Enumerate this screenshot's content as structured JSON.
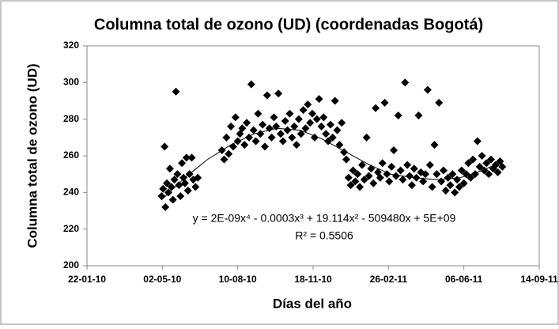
{
  "chart_data": {
    "type": "scatter",
    "title": "Columna total de ozono (UD) (coordenadas Bogotá)",
    "x_label": "Días del año",
    "y_label": "Columna total de ozono (UD)",
    "color": "#000000",
    "x": [
      "2010-05-01",
      "2010-05-03",
      "2010-05-05",
      "2010-05-06",
      "2010-05-08",
      "2010-05-10",
      "2010-05-12",
      "2010-05-14",
      "2010-05-16",
      "2010-05-18",
      "2010-05-20",
      "2010-05-22",
      "2010-05-24",
      "2010-05-26",
      "2010-05-28",
      "2010-05-30",
      "2010-06-01",
      "2010-06-03",
      "2010-06-05",
      "2010-06-07",
      "2010-06-10",
      "2010-06-12",
      "2010-06-15",
      "2010-06-18",
      "2010-07-20",
      "2010-07-23",
      "2010-07-26",
      "2010-07-29",
      "2010-08-01",
      "2010-08-04",
      "2010-08-07",
      "2010-08-10",
      "2010-08-13",
      "2010-08-16",
      "2010-08-19",
      "2010-08-22",
      "2010-08-25",
      "2010-08-28",
      "2010-08-31",
      "2010-09-03",
      "2010-09-06",
      "2010-09-09",
      "2010-09-12",
      "2010-09-15",
      "2010-09-18",
      "2010-09-21",
      "2010-09-24",
      "2010-09-27",
      "2010-09-30",
      "2010-10-03",
      "2010-10-06",
      "2010-10-09",
      "2010-10-12",
      "2010-10-15",
      "2010-10-18",
      "2010-10-21",
      "2010-10-24",
      "2010-10-27",
      "2010-10-30",
      "2010-11-02",
      "2010-11-05",
      "2010-11-08",
      "2010-11-11",
      "2010-11-14",
      "2010-11-17",
      "2010-11-20",
      "2010-11-23",
      "2010-11-26",
      "2010-11-29",
      "2010-12-02",
      "2010-12-05",
      "2010-12-08",
      "2010-12-11",
      "2010-12-14",
      "2010-12-17",
      "2010-12-20",
      "2010-12-23",
      "2010-12-26",
      "2010-12-29",
      "2011-01-01",
      "2011-01-04",
      "2011-01-07",
      "2011-01-10",
      "2011-01-13",
      "2011-01-16",
      "2011-01-19",
      "2011-01-22",
      "2011-01-25",
      "2011-01-28",
      "2011-01-31",
      "2011-02-03",
      "2011-02-06",
      "2011-02-09",
      "2011-02-12",
      "2011-02-15",
      "2011-02-18",
      "2011-02-21",
      "2011-02-24",
      "2011-02-27",
      "2011-03-02",
      "2011-03-05",
      "2011-03-08",
      "2011-03-11",
      "2011-03-14",
      "2011-03-17",
      "2011-03-20",
      "2011-03-23",
      "2011-03-26",
      "2011-03-29",
      "2011-04-01",
      "2011-04-04",
      "2011-04-07",
      "2011-04-10",
      "2011-04-13",
      "2011-04-16",
      "2011-04-19",
      "2011-04-22",
      "2011-04-25",
      "2011-04-28",
      "2011-05-01",
      "2011-05-04",
      "2011-05-07",
      "2011-05-10",
      "2011-05-13",
      "2011-05-16",
      "2011-05-19",
      "2011-05-22",
      "2011-05-25",
      "2011-05-28",
      "2011-05-31",
      "2011-06-03",
      "2011-06-06",
      "2011-06-09",
      "2011-06-12",
      "2011-06-15",
      "2011-06-18",
      "2011-06-21",
      "2011-06-24",
      "2011-06-27",
      "2011-06-30",
      "2011-07-03",
      "2011-07-06",
      "2011-07-09",
      "2011-07-12",
      "2011-07-15",
      "2011-07-18",
      "2011-07-21",
      "2011-07-24",
      "2011-07-27"
    ],
    "values": [
      238,
      242,
      265,
      232,
      245,
      240,
      253,
      243,
      236,
      247,
      295,
      250,
      244,
      238,
      256,
      248,
      245,
      259,
      241,
      250,
      259,
      247,
      243,
      248,
      263,
      258,
      270,
      261,
      276,
      265,
      281,
      268,
      272,
      275,
      266,
      278,
      270,
      299,
      274,
      268,
      283,
      272,
      277,
      265,
      293,
      275,
      270,
      281,
      276,
      294,
      272,
      268,
      279,
      274,
      283,
      270,
      276,
      266,
      280,
      272,
      285,
      275,
      288,
      278,
      283,
      270,
      280,
      291,
      276,
      281,
      272,
      268,
      277,
      270,
      290,
      274,
      266,
      278,
      262,
      258,
      248,
      244,
      252,
      246,
      250,
      243,
      255,
      247,
      270,
      249,
      253,
      245,
      286,
      251,
      248,
      256,
      289,
      250,
      246,
      254,
      263,
      249,
      282,
      252,
      247,
      300,
      255,
      249,
      244,
      253,
      248,
      282,
      251,
      246,
      250,
      296,
      255,
      243,
      266,
      250,
      289,
      246,
      252,
      241,
      248,
      244,
      250,
      240,
      247,
      243,
      252,
      245,
      250,
      256,
      248,
      258,
      250,
      268,
      254,
      260,
      252,
      256,
      250,
      258,
      253,
      255,
      251,
      257,
      254
    ],
    "trendline": {
      "x": [
        "2010-05-01",
        "2010-06-01",
        "2010-07-01",
        "2010-08-01",
        "2010-09-01",
        "2010-10-01",
        "2010-11-01",
        "2010-12-01",
        "2011-01-01",
        "2011-02-01",
        "2011-03-01",
        "2011-04-01",
        "2011-05-01",
        "2011-06-01",
        "2011-07-01",
        "2011-07-27"
      ],
      "values": [
        236,
        248,
        258,
        266,
        272,
        275,
        274,
        269,
        262,
        255,
        250,
        248,
        247,
        248,
        252,
        257
      ]
    },
    "annotations": [
      "y = 2E-09x⁴ - 0.0003x³ + 19.114x² - 509480x + 5E+09",
      "R² = 0.5506"
    ],
    "xlim": [
      "2010-01-22",
      "2011-09-14"
    ],
    "xticks": [
      {
        "value": "2010-01-22",
        "label": "22-01-10"
      },
      {
        "value": "2010-05-02",
        "label": "02-05-10"
      },
      {
        "value": "2010-08-10",
        "label": "10-08-10"
      },
      {
        "value": "2010-11-18",
        "label": "18-11-10"
      },
      {
        "value": "2011-02-26",
        "label": "26-02-11"
      },
      {
        "value": "2011-06-06",
        "label": "06-06-11"
      },
      {
        "value": "2011-09-14",
        "label": "14-09-11"
      }
    ],
    "ylim": [
      200,
      320
    ],
    "yticks": [
      200,
      220,
      240,
      260,
      280,
      300,
      320
    ],
    "grid": false
  }
}
